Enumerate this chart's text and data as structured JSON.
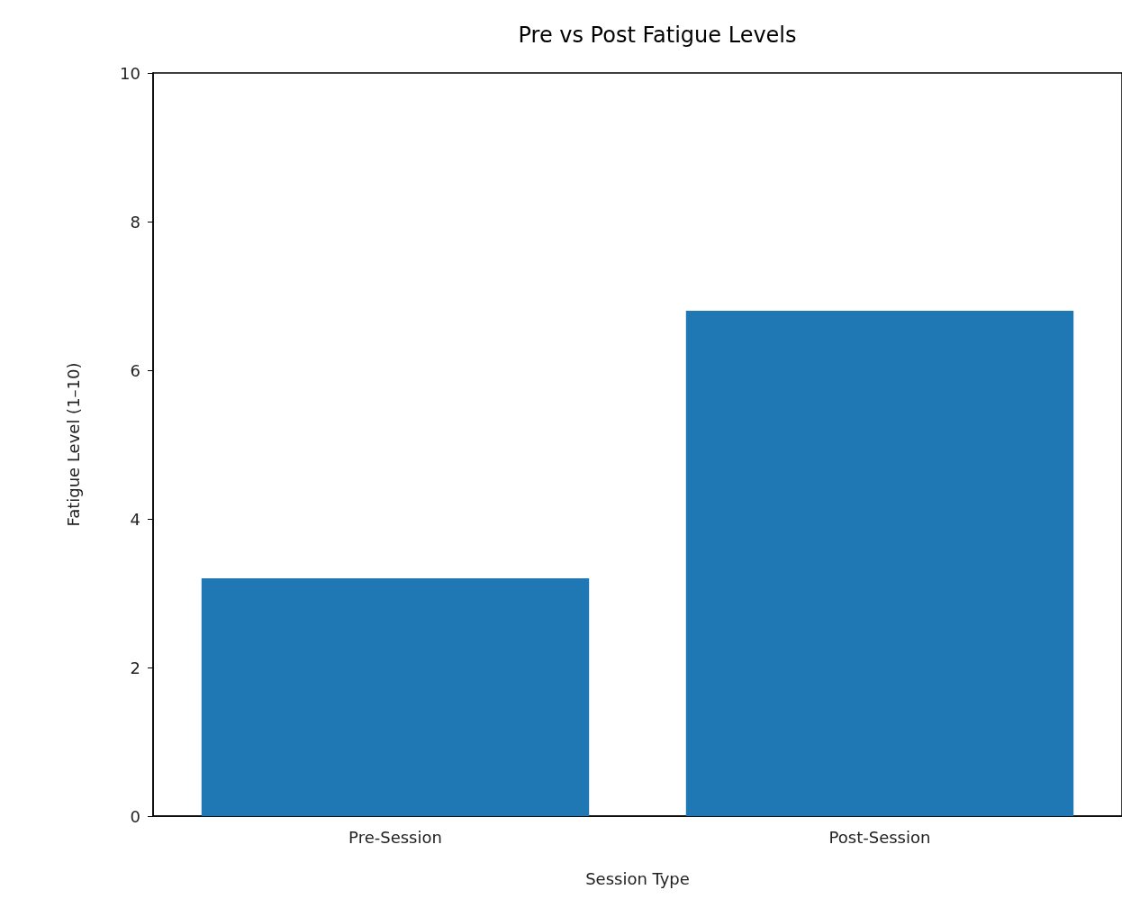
{
  "chart_data": {
    "type": "bar",
    "title": "Pre vs Post Fatigue Levels",
    "xlabel": "Session Type",
    "ylabel": "Fatigue Level (1–10)",
    "categories": [
      "Pre-Session",
      "Post-Session"
    ],
    "values": [
      3.2,
      6.8
    ],
    "color": "#1f77b4",
    "ylim": [
      0,
      10
    ],
    "yticks": [
      0,
      2,
      4,
      6,
      8,
      10
    ],
    "grid": false
  }
}
